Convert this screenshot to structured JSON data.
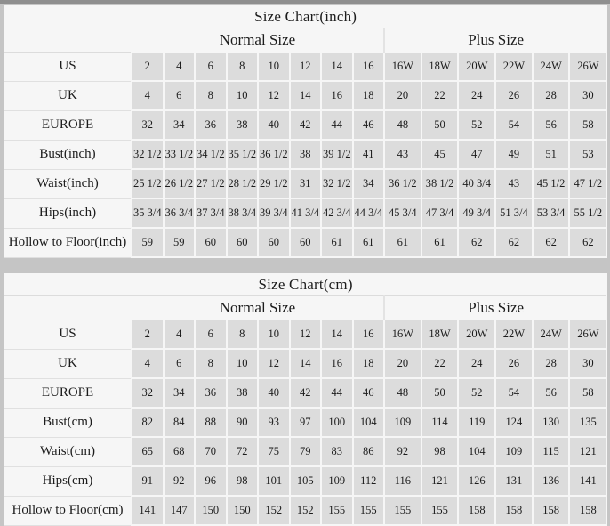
{
  "colors": {
    "page_bg": "#c5c5c5",
    "top_strip": "#8f8f8f",
    "table_bg": "#f6f6f6",
    "cell_bg": "#dcdcdc",
    "grid_line": "#f6f6f6",
    "text": "#1c1c1c"
  },
  "chart_data": [
    {
      "type": "table",
      "title": "Size Chart(inch)",
      "column_groups": [
        {
          "label": "Normal Size",
          "span": 8
        },
        {
          "label": "Plus Size",
          "span": 6
        }
      ],
      "rows": [
        {
          "label": "US",
          "values": [
            "2",
            "4",
            "6",
            "8",
            "10",
            "12",
            "14",
            "16",
            "16W",
            "18W",
            "20W",
            "22W",
            "24W",
            "26W"
          ]
        },
        {
          "label": "UK",
          "values": [
            "4",
            "6",
            "8",
            "10",
            "12",
            "14",
            "16",
            "18",
            "20",
            "22",
            "24",
            "26",
            "28",
            "30"
          ]
        },
        {
          "label": "EUROPE",
          "values": [
            "32",
            "34",
            "36",
            "38",
            "40",
            "42",
            "44",
            "46",
            "48",
            "50",
            "52",
            "54",
            "56",
            "58"
          ]
        },
        {
          "label": "Bust(inch)",
          "values": [
            "32 1/2",
            "33 1/2",
            "34 1/2",
            "35 1/2",
            "36 1/2",
            "38",
            "39 1/2",
            "41",
            "43",
            "45",
            "47",
            "49",
            "51",
            "53"
          ]
        },
        {
          "label": "Waist(inch)",
          "values": [
            "25 1/2",
            "26 1/2",
            "27 1/2",
            "28 1/2",
            "29 1/2",
            "31",
            "32 1/2",
            "34",
            "36 1/2",
            "38 1/2",
            "40 3/4",
            "43",
            "45 1/2",
            "47 1/2"
          ]
        },
        {
          "label": "Hips(inch)",
          "values": [
            "35 3/4",
            "36 3/4",
            "37 3/4",
            "38 3/4",
            "39 3/4",
            "41 3/4",
            "42 3/4",
            "44 3/4",
            "45 3/4",
            "47 3/4",
            "49 3/4",
            "51 3/4",
            "53 3/4",
            "55 1/2"
          ]
        },
        {
          "label": "Hollow to Floor(inch)",
          "values": [
            "59",
            "59",
            "60",
            "60",
            "60",
            "60",
            "61",
            "61",
            "61",
            "61",
            "62",
            "62",
            "62",
            "62"
          ]
        }
      ]
    },
    {
      "type": "table",
      "title": "Size Chart(cm)",
      "column_groups": [
        {
          "label": "Normal Size",
          "span": 8
        },
        {
          "label": "Plus Size",
          "span": 6
        }
      ],
      "rows": [
        {
          "label": "US",
          "values": [
            "2",
            "4",
            "6",
            "8",
            "10",
            "12",
            "14",
            "16",
            "16W",
            "18W",
            "20W",
            "22W",
            "24W",
            "26W"
          ]
        },
        {
          "label": "UK",
          "values": [
            "4",
            "6",
            "8",
            "10",
            "12",
            "14",
            "16",
            "18",
            "20",
            "22",
            "24",
            "26",
            "28",
            "30"
          ]
        },
        {
          "label": "EUROPE",
          "values": [
            "32",
            "34",
            "36",
            "38",
            "40",
            "42",
            "44",
            "46",
            "48",
            "50",
            "52",
            "54",
            "56",
            "58"
          ]
        },
        {
          "label": "Bust(cm)",
          "values": [
            "82",
            "84",
            "88",
            "90",
            "93",
            "97",
            "100",
            "104",
            "109",
            "114",
            "119",
            "124",
            "130",
            "135"
          ]
        },
        {
          "label": "Waist(cm)",
          "values": [
            "65",
            "68",
            "70",
            "72",
            "75",
            "79",
            "83",
            "86",
            "92",
            "98",
            "104",
            "109",
            "115",
            "121"
          ]
        },
        {
          "label": "Hips(cm)",
          "values": [
            "91",
            "92",
            "96",
            "98",
            "101",
            "105",
            "109",
            "112",
            "116",
            "121",
            "126",
            "131",
            "136",
            "141"
          ]
        },
        {
          "label": "Hollow to Floor(cm)",
          "values": [
            "141",
            "147",
            "150",
            "150",
            "152",
            "152",
            "155",
            "155",
            "155",
            "155",
            "158",
            "158",
            "158",
            "158"
          ]
        }
      ]
    }
  ]
}
